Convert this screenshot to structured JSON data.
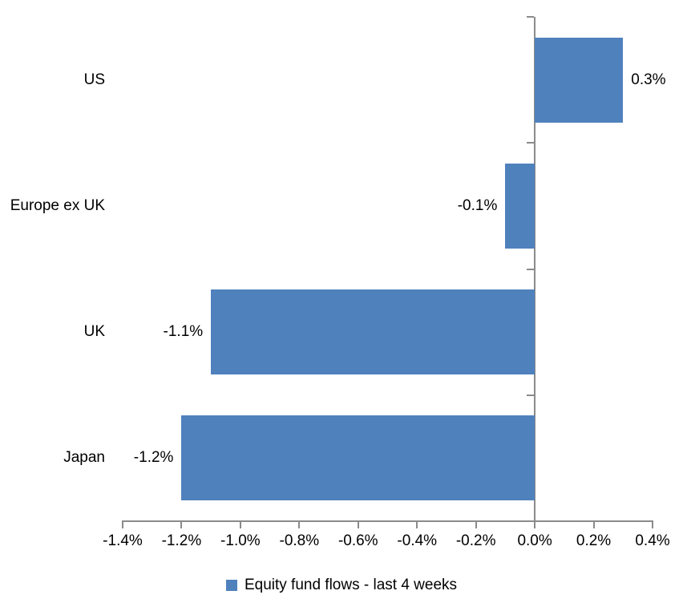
{
  "chart_data": {
    "type": "bar",
    "orientation": "horizontal",
    "title": "",
    "xlabel": "",
    "ylabel": "",
    "categories": [
      "US",
      "Europe ex UK",
      "UK",
      "Japan"
    ],
    "series": [
      {
        "name": "Equity fund flows - last 4 weeks",
        "values": [
          0.3,
          -0.1,
          -1.1,
          -1.2
        ],
        "data_labels": [
          "0.3%",
          "-0.1%",
          "-1.1%",
          "-1.2%"
        ]
      }
    ],
    "xlim": [
      -1.4,
      0.4
    ],
    "x_ticks": [
      -1.4,
      -1.2,
      -1.0,
      -0.8,
      -0.6,
      -0.4,
      -0.2,
      0.0,
      0.2,
      0.4
    ],
    "x_tick_labels": [
      "-1.4%",
      "-1.2%",
      "-1.0%",
      "-0.8%",
      "-0.6%",
      "-0.4%",
      "-0.2%",
      "0.0%",
      "0.2%",
      "0.4%"
    ],
    "grid": false,
    "legend_position": "bottom",
    "bar_color": "#4F81BD",
    "axis_color": "#8B8B8B",
    "text_color": "#000000"
  }
}
